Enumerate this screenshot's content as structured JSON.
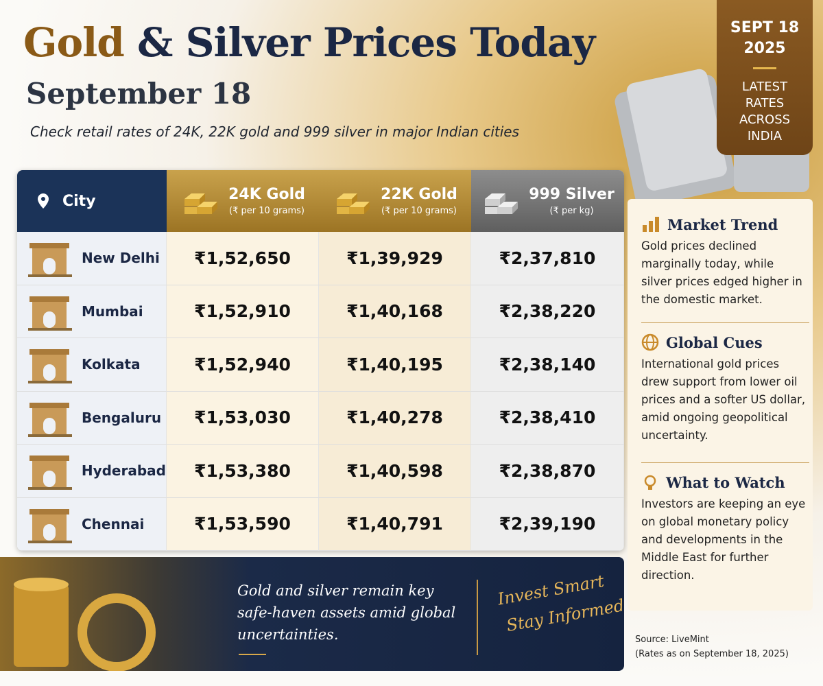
{
  "header": {
    "title_highlight": "Gold",
    "title_rest": "& Silver Prices Today",
    "subtitle": "September 18",
    "tagline": "Check retail rates of 24K, 22K gold and 999 silver in major Indian cities"
  },
  "badge": {
    "date_lines": [
      "SEPT 18",
      "2025"
    ],
    "text_lines": [
      "LATEST",
      "RATES",
      "ACROSS",
      "INDIA"
    ]
  },
  "table": {
    "columns": [
      {
        "label": "City"
      },
      {
        "label": "24K Gold",
        "unit": "(₹ per 10 grams)"
      },
      {
        "label": "22K Gold",
        "unit": "(₹ per 10 grams)"
      },
      {
        "label": "999 Silver",
        "unit": "(₹ per kg)"
      }
    ],
    "rows": [
      [
        "New Delhi",
        "₹1,52,650",
        "₹1,39,929",
        "₹2,37,810"
      ],
      [
        "Mumbai",
        "₹1,52,910",
        "₹1,40,168",
        "₹2,38,220"
      ],
      [
        "Kolkata",
        "₹1,52,940",
        "₹1,40,195",
        "₹2,38,140"
      ],
      [
        "Bengaluru",
        "₹1,53,030",
        "₹1,40,278",
        "₹2,38,410"
      ],
      [
        "Hyderabad",
        "₹1,53,380",
        "₹1,40,598",
        "₹2,38,870"
      ],
      [
        "Chennai",
        "₹1,53,590",
        "₹1,40,791",
        "₹2,39,190"
      ]
    ]
  },
  "sidebar": {
    "sections": [
      {
        "title": "Market Trend",
        "body": "Gold prices declined marginally today, while silver prices edged higher in the domestic market."
      },
      {
        "title": "Global Cues",
        "body": "International gold prices drew support from lower oil prices and a softer US dollar, amid ongoing geopolitical uncertainty."
      },
      {
        "title": "What to Watch",
        "body": "Investors are keeping an eye on global monetary policy and developments in the Middle East for further direction."
      }
    ]
  },
  "banner": {
    "text": "Gold and silver remain key safe-haven assets amid global uncertainties.",
    "slogan_lines": [
      "Invest Smart",
      "Stay Informed"
    ]
  },
  "source": {
    "line1": "Source: LiveMint",
    "line2": "(Rates as on September 18, 2025)"
  }
}
